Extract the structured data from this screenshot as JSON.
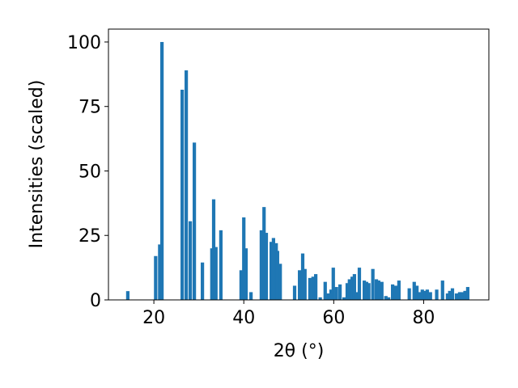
{
  "chart_data": {
    "type": "bar",
    "x_label": "2θ (°)",
    "y_label": "Intensities (scaled)",
    "color": "#1f77b4",
    "x": [
      14.2,
      20.4,
      21.3,
      21.8,
      26.3,
      27.2,
      28.1,
      29.0,
      30.8,
      32.9,
      33.3,
      33.8,
      34.9,
      39.4,
      40.0,
      40.5,
      41.6,
      43.9,
      44.5,
      45.0,
      46.1,
      46.6,
      47.2,
      47.5,
      48.1,
      51.3,
      52.4,
      53.1,
      53.6,
      54.7,
      55.4,
      56.0,
      57.0,
      58.1,
      58.8,
      59.4,
      59.9,
      60.6,
      61.4,
      62.3,
      63.0,
      63.5,
      64.1,
      64.6,
      65.1,
      65.7,
      66.8,
      67.3,
      67.8,
      68.7,
      69.5,
      70.0,
      70.7,
      71.6,
      72.2,
      73.1,
      73.8,
      74.5,
      76.8,
      77.9,
      78.5,
      79.0,
      79.7,
      80.3,
      80.8,
      81.5,
      82.9,
      84.2,
      85.3,
      85.8,
      86.4,
      87.3,
      88.0,
      88.5,
      89.2,
      89.8
    ],
    "values": [
      3.4,
      17,
      21.5,
      100,
      81.5,
      89,
      30.5,
      61,
      14.5,
      20,
      39,
      20.5,
      27,
      11.5,
      32,
      20,
      3,
      27,
      36,
      26,
      22.5,
      24,
      22,
      19,
      14,
      5.5,
      11.5,
      18,
      12,
      8.5,
      9,
      10,
      1,
      7,
      2.5,
      4,
      12.5,
      5,
      6,
      1,
      6.5,
      8,
      9,
      10,
      3,
      12.5,
      7.5,
      7,
      6.5,
      12,
      8,
      7.5,
      7,
      1.5,
      1,
      6,
      5.5,
      7.5,
      4.5,
      7,
      5.5,
      3,
      4,
      3.5,
      4,
      3,
      4,
      7.5,
      2.5,
      3.5,
      4.5,
      2.5,
      3,
      3,
      3.5,
      5
    ],
    "xlim": [
      9.9,
      94.5
    ],
    "ylim": [
      0,
      105
    ],
    "xticks": [
      20,
      40,
      60,
      80
    ],
    "yticks": [
      0,
      25,
      50,
      75,
      100
    ]
  }
}
